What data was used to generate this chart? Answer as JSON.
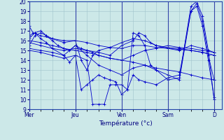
{
  "title": "",
  "xlabel": "Température (°c)",
  "ylabel": "",
  "background_color": "#cce8e8",
  "grid_color": "#a0c4cc",
  "line_color": "#0000cc",
  "ylim": [
    9,
    20
  ],
  "yticks": [
    9,
    10,
    11,
    12,
    13,
    14,
    15,
    16,
    17,
    18,
    19,
    20
  ],
  "x_day_labels": [
    "Mer",
    "Jeu",
    "Ven",
    "Sam",
    "D"
  ],
  "x_day_positions": [
    0,
    24,
    48,
    72,
    96
  ],
  "xlim": [
    0,
    100
  ],
  "series": [
    [
      0,
      17.5,
      2,
      16.8,
      6,
      16.5,
      12,
      16.2,
      18,
      16.0,
      24,
      16.0,
      30,
      15.8,
      36,
      15.5,
      42,
      15.3,
      48,
      15.2,
      54,
      15.5,
      60,
      15.5,
      66,
      15.3,
      72,
      15.2,
      78,
      15.1,
      84,
      15.0,
      90,
      14.8,
      96,
      14.5
    ],
    [
      0,
      16.0,
      6,
      15.8,
      12,
      15.5,
      18,
      15.2,
      24,
      15.0,
      30,
      14.8,
      36,
      14.5,
      42,
      14.2,
      48,
      14.0,
      54,
      13.8,
      60,
      13.5,
      66,
      13.2,
      72,
      13.0,
      78,
      12.8,
      84,
      12.5,
      90,
      12.2,
      96,
      12.0
    ],
    [
      0,
      16.5,
      3,
      16.8,
      6,
      16.2,
      9,
      15.8,
      12,
      15.2,
      18,
      14.5,
      21,
      13.8,
      24,
      14.5,
      27,
      11.0,
      30,
      11.5,
      33,
      12.0,
      36,
      12.5,
      39,
      12.2,
      42,
      12.0,
      45,
      11.8,
      48,
      10.5,
      51,
      11.0,
      54,
      16.8,
      57,
      16.5,
      60,
      15.5,
      63,
      13.5,
      66,
      13.0,
      72,
      12.0,
      78,
      12.2,
      84,
      19.5,
      87,
      20.0,
      90,
      18.5,
      93,
      15.0,
      96,
      10.0
    ],
    [
      0,
      15.8,
      6,
      15.5,
      12,
      15.2,
      18,
      15.0,
      24,
      15.2,
      30,
      15.0,
      36,
      14.8,
      42,
      14.5,
      48,
      15.5,
      54,
      16.0,
      57,
      16.8,
      60,
      16.5,
      63,
      15.8,
      66,
      15.5,
      72,
      15.3,
      78,
      15.2,
      84,
      15.0,
      90,
      14.8,
      96,
      14.5
    ],
    [
      0,
      15.5,
      3,
      16.5,
      6,
      16.8,
      9,
      16.5,
      12,
      16.2,
      18,
      15.8,
      24,
      16.0,
      27,
      14.0,
      30,
      13.0,
      33,
      14.5,
      36,
      15.0,
      42,
      15.3,
      48,
      15.8,
      54,
      16.2,
      60,
      16.0,
      66,
      15.5,
      72,
      15.2,
      78,
      15.0,
      84,
      15.5,
      90,
      15.2,
      96,
      14.8
    ],
    [
      0,
      15.2,
      6,
      15.0,
      12,
      14.8,
      18,
      14.5,
      24,
      15.5,
      30,
      14.5,
      36,
      13.5,
      42,
      13.0,
      48,
      12.5,
      54,
      13.2,
      60,
      13.5,
      66,
      13.0,
      72,
      12.5,
      78,
      12.0,
      84,
      19.0,
      87,
      19.8,
      90,
      18.0,
      93,
      14.5,
      96,
      12.0
    ],
    [
      0,
      15.0,
      6,
      14.8,
      12,
      14.5,
      18,
      14.2,
      24,
      14.5,
      30,
      14.0,
      33,
      9.5,
      36,
      9.5,
      39,
      9.5,
      42,
      11.5,
      45,
      11.5,
      48,
      11.5,
      51,
      11.0,
      54,
      12.5,
      57,
      12.0,
      60,
      11.8,
      66,
      11.5,
      72,
      12.2,
      78,
      12.5,
      84,
      19.0,
      87,
      19.5,
      90,
      17.5,
      93,
      14.0,
      96,
      10.2
    ],
    [
      0,
      16.2,
      3,
      16.8,
      6,
      17.0,
      9,
      16.5,
      12,
      16.0,
      15,
      15.5,
      18,
      15.2,
      21,
      15.0,
      24,
      15.5,
      27,
      15.2,
      30,
      15.0,
      33,
      14.8,
      36,
      14.5,
      42,
      14.2,
      48,
      14.0,
      54,
      14.5,
      60,
      15.0,
      66,
      15.2,
      72,
      15.5,
      78,
      15.3,
      84,
      15.2,
      90,
      15.0,
      96,
      14.8
    ]
  ]
}
